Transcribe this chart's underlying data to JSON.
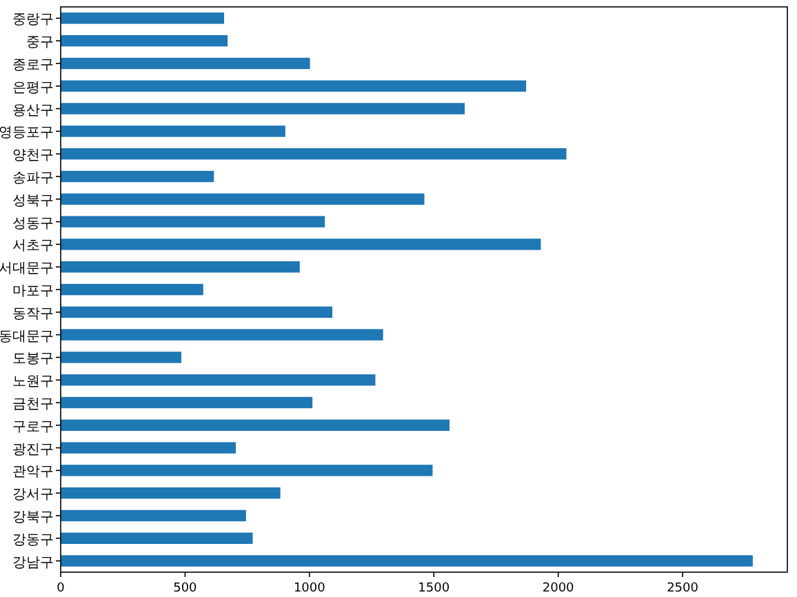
{
  "chart_data": {
    "type": "bar",
    "orientation": "horizontal",
    "categories": [
      "중랑구",
      "중구",
      "종로구",
      "은평구",
      "용산구",
      "영등포구",
      "양천구",
      "송파구",
      "성북구",
      "성동구",
      "서초구",
      "서대문구",
      "마포구",
      "동작구",
      "동대문구",
      "도봉구",
      "노원구",
      "금천구",
      "구로구",
      "광진구",
      "관악구",
      "강서구",
      "강북구",
      "강동구",
      "강남구"
    ],
    "values": [
      657,
      671,
      1002,
      1871,
      1624,
      903,
      2033,
      616,
      1462,
      1062,
      1930,
      961,
      573,
      1092,
      1296,
      485,
      1265,
      1012,
      1563,
      704,
      1495,
      883,
      745,
      772,
      2782
    ],
    "color": "#1f77b4",
    "xlim": [
      0,
      2921
    ],
    "xticks": [
      0,
      500,
      1000,
      1500,
      2000,
      2500
    ]
  }
}
